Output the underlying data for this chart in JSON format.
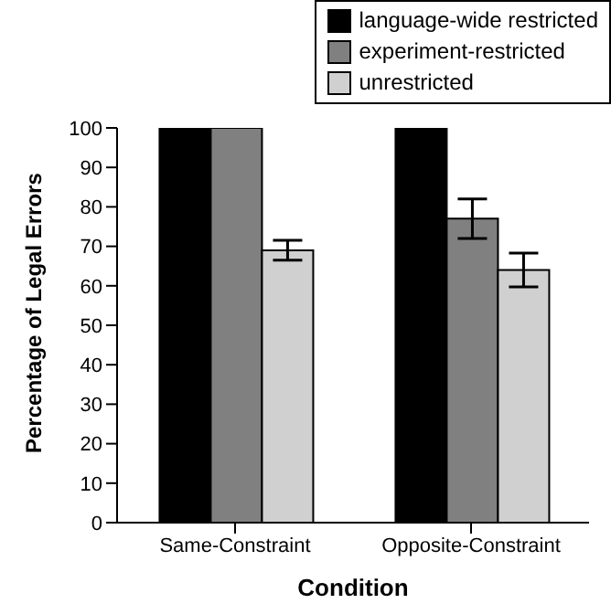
{
  "chart_data": {
    "type": "bar",
    "xlabel": "Condition",
    "ylabel": "Percentage of Legal Errors",
    "categories": [
      "Same-Constraint",
      "Opposite-Constraint"
    ],
    "series": [
      {
        "name": "language-wide restricted",
        "color": "#000000",
        "values": [
          100,
          100
        ]
      },
      {
        "name": "experiment-restricted",
        "color": "#808080",
        "values": [
          100,
          77
        ],
        "errors": [
          null,
          5
        ]
      },
      {
        "name": "unrestricted",
        "color": "#d0d0d0",
        "values": [
          69,
          64
        ],
        "errors": [
          2.5,
          4.3
        ]
      }
    ],
    "ylim": [
      0,
      100
    ],
    "yticks": [
      0,
      10,
      20,
      30,
      40,
      50,
      60,
      70,
      80,
      90,
      100
    ],
    "grid": false,
    "legend": "top right"
  }
}
